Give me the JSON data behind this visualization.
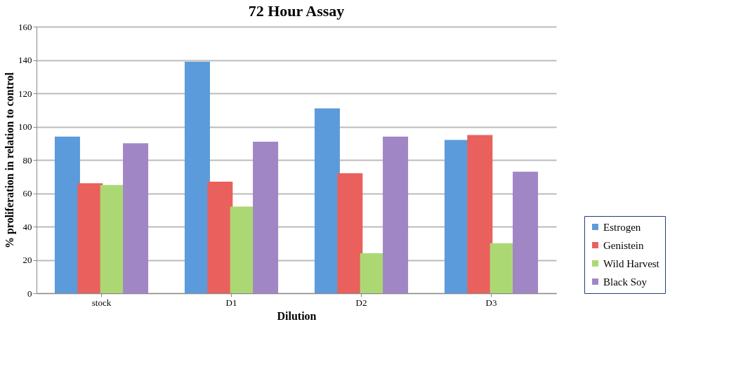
{
  "chart_data": {
    "type": "bar",
    "title": "72 Hour Assay",
    "xlabel": "Dilution",
    "ylabel": "% proliferation in relation to control",
    "categories": [
      "stock",
      "D1",
      "D2",
      "D3"
    ],
    "series": [
      {
        "name": "Estrogen",
        "color": "#5b9bdb",
        "values": [
          94,
          139,
          111,
          92
        ]
      },
      {
        "name": "Genistein",
        "color": "#e9605c",
        "values": [
          66,
          67,
          72,
          95
        ]
      },
      {
        "name": "Wild Harvest",
        "color": "#acd874",
        "values": [
          65,
          52,
          24,
          30
        ]
      },
      {
        "name": "Black Soy",
        "color": "#a186c6",
        "values": [
          90,
          91,
          94,
          73
        ]
      }
    ],
    "ylim": [
      0,
      160
    ],
    "yticks": [
      0,
      20,
      40,
      60,
      80,
      100,
      120,
      140,
      160
    ],
    "grid": "y",
    "legend": "bottom right"
  }
}
